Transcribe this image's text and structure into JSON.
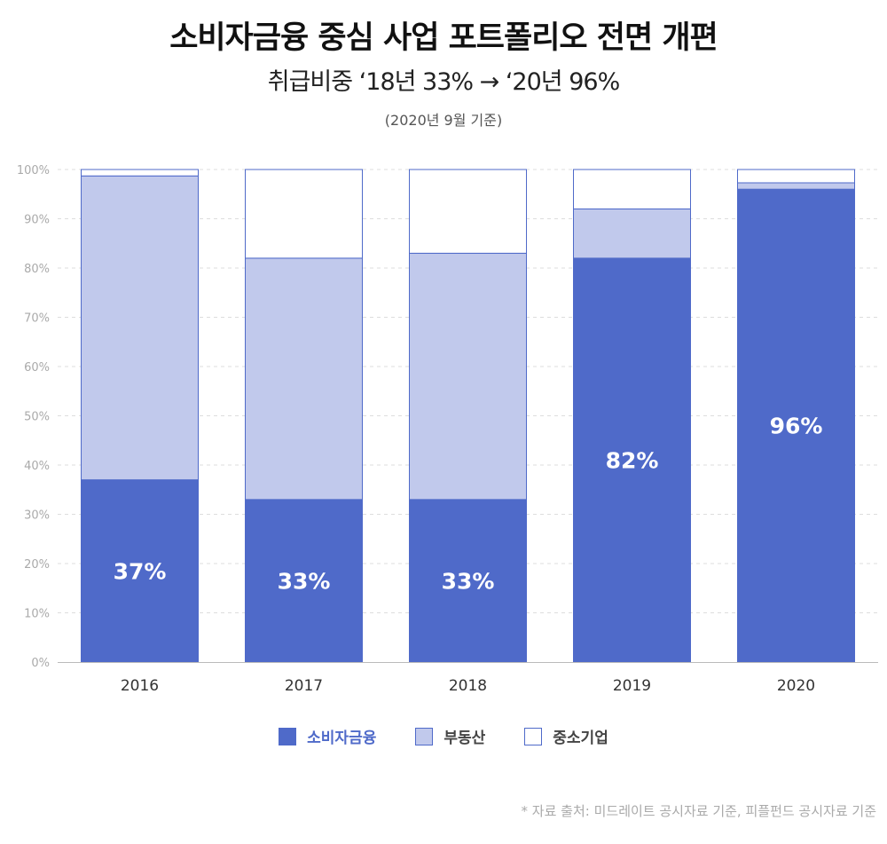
{
  "title": "소비자금융 중심 사업 포트폴리오 전면 개편",
  "subtitle": "취급비중 ‘18년 33% → ‘20년 96%",
  "note": "(2020년 9월 기준)",
  "source": "* 자료 출처: 미드레이트 공시자료 기준, 피플펀드 공시자료 기준",
  "chart_data": {
    "type": "bar",
    "stacked": true,
    "categories": [
      "2016",
      "2017",
      "2018",
      "2019",
      "2020"
    ],
    "series": [
      {
        "name": "소비자금융",
        "values": [
          37,
          33,
          33,
          82,
          96
        ],
        "color": "#4f6ac9"
      },
      {
        "name": "부동산",
        "values": [
          61.7,
          49,
          50,
          10,
          1.3
        ],
        "color": "#c1c9ec"
      },
      {
        "name": "중소기업",
        "values": [
          1.3,
          18,
          17,
          8,
          2.7
        ],
        "color": "#ffffff"
      }
    ],
    "data_labels": [
      "37%",
      "33%",
      "33%",
      "82%",
      "96%"
    ],
    "ylim": [
      0,
      100
    ],
    "yticks": [
      "0%",
      "10%",
      "20%",
      "30%",
      "40%",
      "50%",
      "60%",
      "70%",
      "80%",
      "90%",
      "100%"
    ],
    "grid": true,
    "legend": "bottom"
  }
}
